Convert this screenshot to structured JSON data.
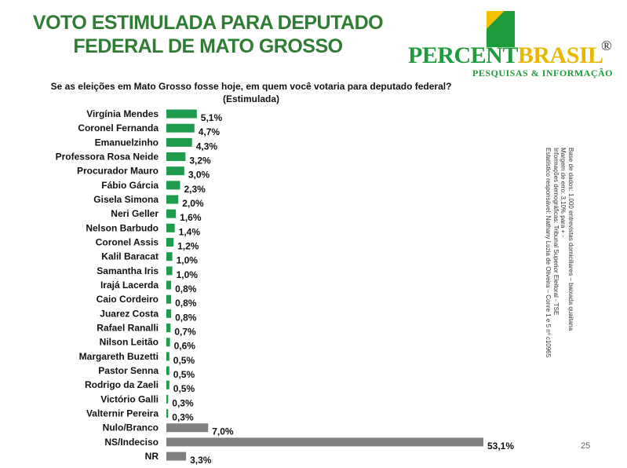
{
  "header": {
    "title_line1": "VOTO ESTIMULADA PARA DEPUTADO",
    "title_line2": "FEDERAL DE MATO GROSSO"
  },
  "logo": {
    "part1": "PERCENT",
    "part2": "BRASIL",
    "reg": "®",
    "subtitle": "PESQUISAS & INFORMAÇÃO"
  },
  "question": {
    "line1": "Se as eleições em Mato Grosso fosse hoje, em quem você votaria para deputado federal?",
    "line2": "(Estimulada)"
  },
  "side_notes": [
    "Base de dados: 1.000 entrevistas domiciliares – baixada quaitana",
    "Margem de erro: 3,10% para + -",
    "Informações demográficas: Tribunal Superior Eleitoral - TSE",
    "Estatístico responsável: Nathany Luzia de Oliveira – Conre 1 e 5 nº c10965"
  ],
  "page_number": "25",
  "colors": {
    "title": "#2e7d32",
    "candidate_bar": "#1e9b4b",
    "other_bar": "#808080",
    "logo_green": "#1e9b3a",
    "logo_yellow": "#e8b800"
  },
  "chart_data": {
    "type": "bar",
    "orientation": "horizontal",
    "categories": [
      "Virgínia Mendes",
      "Coronel Fernanda",
      "Emanuelzinho",
      "Professora Rosa Neide",
      "Procurador Mauro",
      "Fábio Gárcia",
      "Gisela Simona",
      "Neri Geller",
      "Nelson Barbudo",
      "Coronel Assis",
      "Kalil Baracat",
      "Samantha Iris",
      "Irajá Lacerda",
      "Caio Cordeiro",
      "Juarez Costa",
      "Rafael Ranalli",
      "Nilson Leitão",
      "Margareth Buzetti",
      "Pastor Senna",
      "Rodrigo da Zaeli",
      "Victório Galli",
      "Valternir Pereira",
      "Nulo/Branco",
      "NS/Indeciso",
      "NR"
    ],
    "values": [
      5.1,
      4.7,
      4.3,
      3.2,
      3.0,
      2.3,
      2.0,
      1.6,
      1.4,
      1.2,
      1.0,
      1.0,
      0.8,
      0.8,
      0.8,
      0.7,
      0.6,
      0.5,
      0.5,
      0.5,
      0.3,
      0.3,
      7.0,
      53.1,
      3.3
    ],
    "value_labels": [
      "5,1%",
      "4,7%",
      "4,3%",
      "3,2%",
      "3,0%",
      "2,3%",
      "2,0%",
      "1,6%",
      "1,4%",
      "1,2%",
      "1,0%",
      "1,0%",
      "0,8%",
      "0,8%",
      "0,8%",
      "0,7%",
      "0,6%",
      "0,5%",
      "0,5%",
      "0,5%",
      "0,3%",
      "0,3%",
      "7,0%",
      "53,1%",
      "3,3%"
    ],
    "bar_colors": [
      "#1e9b4b",
      "#1e9b4b",
      "#1e9b4b",
      "#1e9b4b",
      "#1e9b4b",
      "#1e9b4b",
      "#1e9b4b",
      "#1e9b4b",
      "#1e9b4b",
      "#1e9b4b",
      "#1e9b4b",
      "#1e9b4b",
      "#1e9b4b",
      "#1e9b4b",
      "#1e9b4b",
      "#1e9b4b",
      "#1e9b4b",
      "#1e9b4b",
      "#1e9b4b",
      "#1e9b4b",
      "#1e9b4b",
      "#1e9b4b",
      "#808080",
      "#808080",
      "#808080"
    ],
    "xlim": [
      0,
      53.1
    ],
    "grid": false,
    "legend": "none"
  }
}
